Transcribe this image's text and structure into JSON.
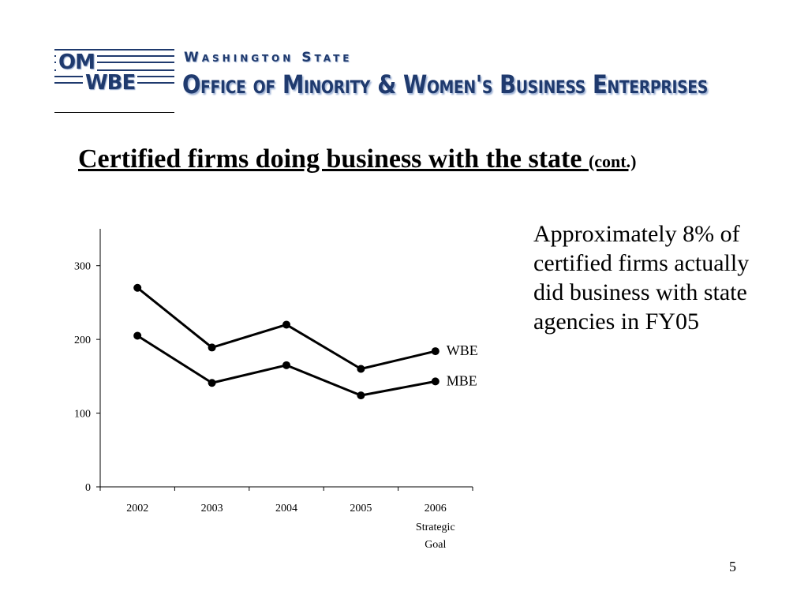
{
  "header": {
    "logo_om": "OM",
    "logo_wbe": "WBE",
    "state_line": "Washington State",
    "office_line": "Office of Minority & Women's Business Enterprises",
    "brand_color": "#1f3a6e"
  },
  "slide": {
    "title": "Certified firms doing business with the state",
    "title_suffix": "(cont.)",
    "note": "Approximately 8% of certified firms actually did business with state agencies in FY05",
    "page_number": "5"
  },
  "chart_data": {
    "type": "line",
    "categories": [
      "2002",
      "2003",
      "2004",
      "2005",
      "2006"
    ],
    "category_sublabels": [
      "",
      "",
      "",
      "",
      "Strategic Goal"
    ],
    "series": [
      {
        "name": "WBE",
        "values": [
          270,
          189,
          220,
          160,
          184
        ]
      },
      {
        "name": "MBE",
        "values": [
          205,
          141,
          165,
          124,
          143
        ]
      }
    ],
    "ylim": [
      0,
      350
    ],
    "yticks": [
      0,
      100,
      200,
      300
    ],
    "legend": "inline-right-end",
    "grid": false,
    "line_color": "#000000"
  }
}
